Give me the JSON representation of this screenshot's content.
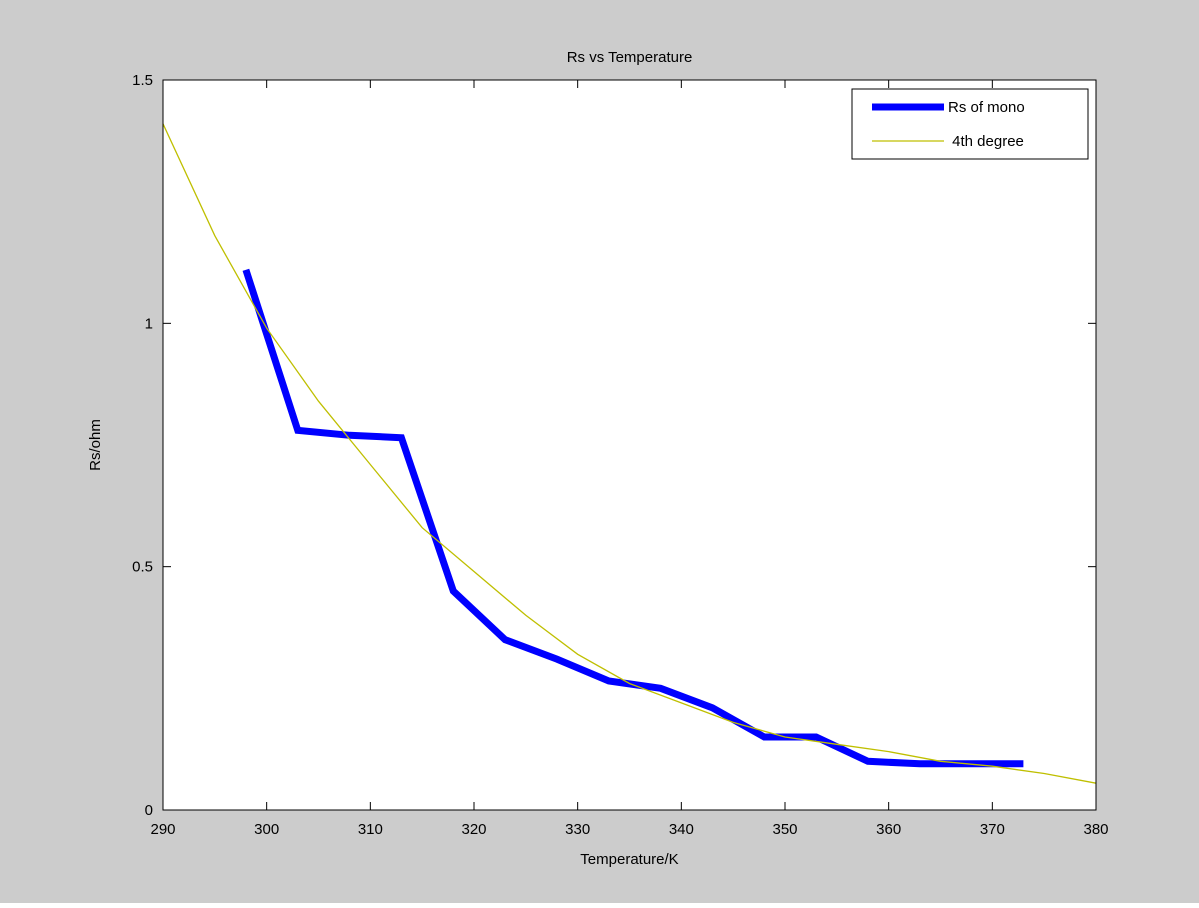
{
  "colors": {
    "figure_background": "#cccccc",
    "axes_background": "#ffffff",
    "axes_line": "#000000"
  },
  "chart_data": {
    "type": "line",
    "title": "Rs vs Temperature",
    "xlabel": "Temperature/K",
    "ylabel": "Rs/ohm",
    "xlim": [
      290,
      380
    ],
    "ylim": [
      0,
      1.5
    ],
    "xticks": [
      290,
      300,
      310,
      320,
      330,
      340,
      350,
      360,
      370,
      380
    ],
    "xtick_labels": [
      "290",
      "300",
      "310",
      "320",
      "330",
      "340",
      "350",
      "360",
      "370",
      "380"
    ],
    "yticks": [
      0,
      0.5,
      1,
      1.5
    ],
    "ytick_labels": [
      "0",
      "0.5",
      "1",
      "1.5"
    ],
    "grid": false,
    "legend_position": "top-right",
    "series": [
      {
        "name": "Rs of mono",
        "color": "#0000ff",
        "style": "thick",
        "x": [
          298,
          303,
          308,
          313,
          318,
          323,
          328,
          333,
          338,
          343,
          348,
          353,
          358,
          363,
          368,
          373
        ],
        "y": [
          1.11,
          0.78,
          0.77,
          0.765,
          0.45,
          0.35,
          0.31,
          0.265,
          0.25,
          0.21,
          0.15,
          0.15,
          0.1,
          0.095,
          0.095,
          0.095
        ]
      },
      {
        "name": " 4th degree",
        "color": "#bfbf00",
        "style": "thin",
        "x": [
          290,
          295,
          300,
          305,
          310,
          315,
          320,
          325,
          330,
          335,
          340,
          345,
          350,
          355,
          360,
          365,
          370,
          375,
          380
        ],
        "y": [
          1.41,
          1.18,
          0.99,
          0.84,
          0.71,
          0.58,
          0.49,
          0.4,
          0.32,
          0.26,
          0.22,
          0.18,
          0.15,
          0.135,
          0.12,
          0.1,
          0.09,
          0.075,
          0.055
        ]
      }
    ]
  }
}
